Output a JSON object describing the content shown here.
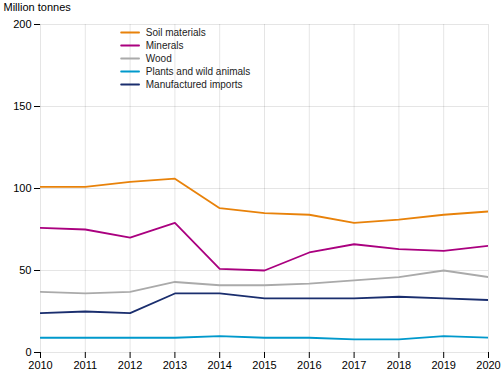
{
  "chart_data": {
    "type": "line",
    "x": [
      2010,
      2011,
      2012,
      2013,
      2014,
      2015,
      2016,
      2017,
      2018,
      2019,
      2020
    ],
    "series": [
      {
        "name": "Soil materials",
        "color": "#E8820A",
        "values": [
          101,
          101,
          104,
          106,
          88,
          85,
          84,
          79,
          81,
          84,
          86
        ]
      },
      {
        "name": "Minerals",
        "color": "#AA007F",
        "values": [
          76,
          75,
          70,
          79,
          51,
          50,
          61,
          66,
          63,
          62,
          65
        ]
      },
      {
        "name": "Wood",
        "color": "#AAAAAA",
        "values": [
          37,
          36,
          37,
          43,
          41,
          41,
          42,
          44,
          46,
          50,
          46
        ]
      },
      {
        "name": "Plants and wild animals",
        "color": "#0099CC",
        "values": [
          9,
          9,
          9,
          9,
          10,
          9,
          9,
          8,
          8,
          10,
          9
        ]
      },
      {
        "name": "Manufactured imports",
        "color": "#1A2E6E",
        "values": [
          24,
          25,
          24,
          36,
          36,
          33,
          33,
          33,
          34,
          33,
          32
        ]
      }
    ],
    "ylabel": "Million tonnes",
    "xlim": [
      2010,
      2020
    ],
    "xticks": [
      2010,
      2011,
      2012,
      2013,
      2014,
      2015,
      2016,
      2017,
      2018,
      2019,
      2020
    ],
    "ylim": [
      0,
      200
    ],
    "yticks": [
      0,
      50,
      100,
      150,
      200
    ],
    "grid": true,
    "legend": "upper left"
  }
}
